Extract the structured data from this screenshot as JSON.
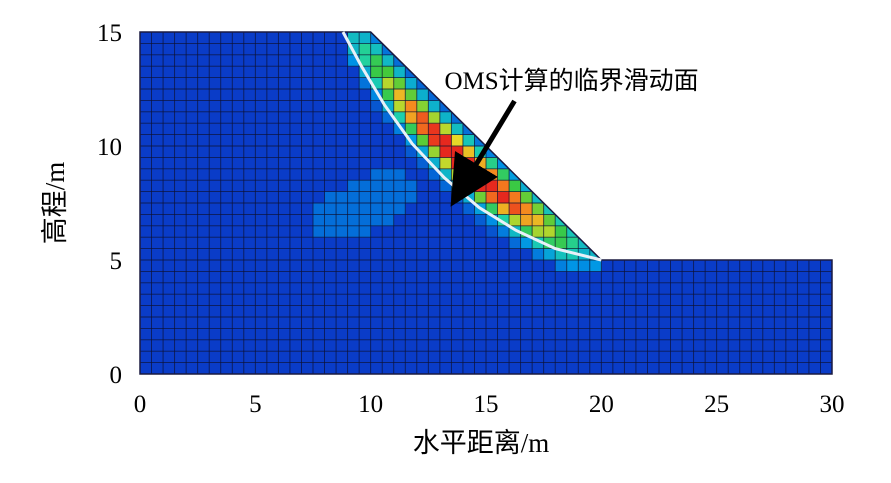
{
  "chart_data": {
    "type": "heatmap",
    "title": "",
    "xlabel": "水平距离/m",
    "ylabel": "高程/m",
    "xlim": [
      0,
      30
    ],
    "ylim": [
      0,
      15
    ],
    "xticks": [
      "0",
      "5",
      "10",
      "15",
      "20",
      "25",
      "30"
    ],
    "yticks": [
      "0",
      "5",
      "10",
      "15"
    ],
    "slope_profile": {
      "x": [
        0,
        10,
        20,
        30
      ],
      "y": [
        15,
        15,
        5,
        5
      ]
    },
    "slip_surface": {
      "x": [
        8.8,
        9.6,
        10.6,
        11.8,
        13.2,
        14.7,
        16.3,
        18.0,
        20.0
      ],
      "y": [
        15,
        13.5,
        11.8,
        10.1,
        8.6,
        7.3,
        6.3,
        5.5,
        5.0
      ]
    },
    "annotation": {
      "text": "OMS计算的临界滑动面",
      "text_xy": [
        13.2,
        12.5
      ],
      "arrow_end_xy": [
        13.8,
        7.9
      ]
    },
    "colors": {
      "background": "#0a3cc8",
      "grid": "#0d1030",
      "slip_surface": "#e8f0f8"
    }
  }
}
